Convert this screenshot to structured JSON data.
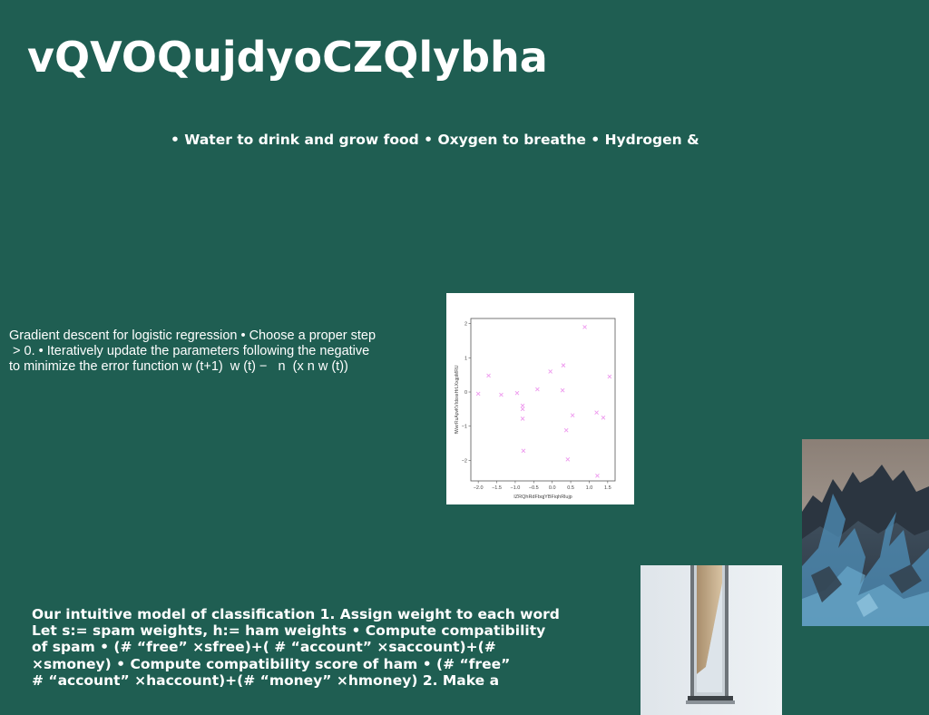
{
  "slide": {
    "title": "vQVOQujdyoCZQlybha",
    "bullets": "• Water to drink and grow food • Oxygen to breathe • Hydrogen &",
    "gradient_lines": [
      "Gradient descent for logistic regression • Choose a proper step",
      "\u001f > 0. • Iteratively update the parameters following the negative",
      "to minimize the error function w (t+1) \u001f w (t) − \u001f \u001f n \u001f \u001f(x\u001f n w (t))"
    ],
    "classification_lines": [
      "Our intuitive model of classification 1. Assign weight to each word",
      "Let s:= spam weights, h:= ham weights • Compute compatibility",
      "of spam • (# “free” ×sfree)+( # “account” ×saccount)+(#",
      "×smoney) • Compute compatibility score of ham • (# “free”",
      "# “account” ×haccount)+(# “money” ×hmoney) 2. Make a"
    ]
  },
  "colors": {
    "background": "#1f5e52",
    "text": "#ffffff",
    "marker": "#ee99ee"
  },
  "chart_data": {
    "type": "scatter",
    "marker": "x",
    "xlabel": "IZRQhRdFbqjYBFiqhRlujp",
    "ylabel": "fWwrRuApvKVIdxxeHrLXxgpMRU",
    "xlim": [
      -2.2,
      1.7
    ],
    "ylim": [
      -2.6,
      2.15
    ],
    "xticks": [
      -2.0,
      -1.5,
      -1.0,
      -0.5,
      0.0,
      0.5,
      1.0,
      1.5
    ],
    "yticks": [
      -2,
      -1,
      0,
      1,
      2
    ],
    "xtick_labels": [
      "−2.0",
      "−1.5",
      "−1.0",
      "−0.5",
      "0.0",
      "0.5",
      "1.0",
      "1.5"
    ],
    "ytick_labels": [
      "−2",
      "−1",
      "0",
      "1",
      "2"
    ],
    "points": [
      {
        "x": -2.0,
        "y": -0.05
      },
      {
        "x": -1.72,
        "y": 0.48
      },
      {
        "x": -1.38,
        "y": -0.08
      },
      {
        "x": -0.95,
        "y": -0.03
      },
      {
        "x": -0.8,
        "y": -0.4
      },
      {
        "x": -0.8,
        "y": -0.5
      },
      {
        "x": -0.8,
        "y": -0.78
      },
      {
        "x": -0.78,
        "y": -1.72
      },
      {
        "x": -0.4,
        "y": 0.08
      },
      {
        "x": -0.05,
        "y": 0.6
      },
      {
        "x": 0.28,
        "y": 0.05
      },
      {
        "x": 0.3,
        "y": 0.78
      },
      {
        "x": 0.38,
        "y": -1.12
      },
      {
        "x": 0.42,
        "y": -1.97
      },
      {
        "x": 0.55,
        "y": -0.68
      },
      {
        "x": 0.88,
        "y": 1.9
      },
      {
        "x": 1.2,
        "y": -0.6
      },
      {
        "x": 1.22,
        "y": -2.45
      },
      {
        "x": 1.38,
        "y": -0.75
      },
      {
        "x": 1.55,
        "y": 0.45
      }
    ],
    "grid": false
  }
}
